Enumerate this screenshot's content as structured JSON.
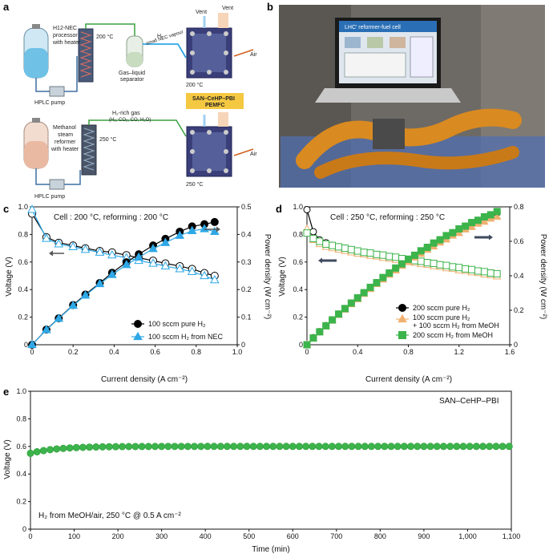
{
  "panels": {
    "a": "a",
    "b": "b",
    "c": "c",
    "d": "d",
    "e": "e"
  },
  "schematic": {
    "top": {
      "processor": "H12-NEC\nprocessor\nwith heater",
      "temp_processor": "200 °C",
      "pump": "HPLC pump",
      "separator": "Gas–liquid\nseparator",
      "line_label_1": "H₂",
      "line_label_2": "small NEC vapour",
      "temp_cell": "200 °C",
      "vent1": "Vent",
      "vent2": "Vent",
      "air": "Air",
      "cell_name_1": "SAN–CeHP–PBI",
      "cell_name_2": "PEMFC"
    },
    "bottom": {
      "reformer": "Methanol\nsteam\nreformer\nwith heater",
      "temp_reformer": "250 °C",
      "pump": "HPLC pump",
      "gas_label_1": "H₂-rich gas",
      "gas_label_2": "(H₂, CO₂, CO, H₂O)",
      "temp_cell": "250 °C",
      "air": "Air"
    }
  },
  "photo": {
    "screen_title": "LHC' reformer-fuel cell"
  },
  "chart_data": [
    {
      "id": "c",
      "type": "line",
      "annotation": "Cell : 200 °C, reforming : 200 °C",
      "xlabel": "Current density (A cm⁻²)",
      "ylabel": "Voltage (V)",
      "ylabel2": "Power density (W cm⁻²)",
      "xlim": [
        0,
        1.0
      ],
      "ylim": [
        0,
        1.0
      ],
      "y2lim": [
        0,
        0.5
      ],
      "xticks": [
        "0",
        "0.2",
        "0.4",
        "0.6",
        "0.8",
        "1.0"
      ],
      "yticks": [
        "0",
        "0.2",
        "0.4",
        "0.6",
        "0.8",
        "1.0"
      ],
      "y2ticks": [
        "0",
        "0.1",
        "0.2",
        "0.3",
        "0.4",
        "0.5"
      ],
      "legend_position": "bottom-right",
      "series": [
        {
          "name": "100 sccm pure H₂",
          "axis": "voltage",
          "marker": "circle-open",
          "x": [
            0,
            0.07,
            0.13,
            0.2,
            0.26,
            0.33,
            0.39,
            0.46,
            0.52,
            0.59,
            0.65,
            0.72,
            0.78,
            0.84,
            0.89
          ],
          "values": [
            0.95,
            0.78,
            0.74,
            0.72,
            0.7,
            0.68,
            0.67,
            0.65,
            0.63,
            0.61,
            0.59,
            0.57,
            0.55,
            0.52,
            0.5
          ]
        },
        {
          "name": "100 sccm H₂ from NEC",
          "axis": "voltage",
          "marker": "triangle-open",
          "x": [
            0,
            0.07,
            0.13,
            0.2,
            0.26,
            0.33,
            0.39,
            0.46,
            0.52,
            0.59,
            0.65,
            0.72,
            0.78,
            0.84,
            0.89
          ],
          "values": [
            0.98,
            0.77,
            0.73,
            0.71,
            0.69,
            0.67,
            0.65,
            0.63,
            0.61,
            0.59,
            0.57,
            0.55,
            0.53,
            0.5,
            0.47
          ]
        },
        {
          "name": "100 sccm pure H₂",
          "axis": "power",
          "marker": "circle-filled",
          "x": [
            0,
            0.07,
            0.13,
            0.2,
            0.26,
            0.33,
            0.39,
            0.46,
            0.52,
            0.59,
            0.65,
            0.72,
            0.78,
            0.84,
            0.89
          ],
          "values": [
            0,
            0.055,
            0.096,
            0.144,
            0.182,
            0.224,
            0.261,
            0.299,
            0.328,
            0.36,
            0.384,
            0.41,
            0.429,
            0.437,
            0.445
          ]
        },
        {
          "name": "100 sccm H₂ from NEC",
          "axis": "power",
          "marker": "triangle-filled",
          "x": [
            0,
            0.07,
            0.13,
            0.2,
            0.26,
            0.33,
            0.39,
            0.46,
            0.52,
            0.59,
            0.65,
            0.72,
            0.78,
            0.84,
            0.89
          ],
          "values": [
            0,
            0.054,
            0.095,
            0.142,
            0.179,
            0.221,
            0.254,
            0.29,
            0.317,
            0.348,
            0.37,
            0.396,
            0.413,
            0.42,
            0.41
          ]
        }
      ]
    },
    {
      "id": "d",
      "type": "line",
      "annotation": "Cell : 250 °C, reforming : 250 °C",
      "xlabel": "Current density (A cm⁻²)",
      "ylabel": "Voltage (V)",
      "ylabel2": "Power density (W cm⁻²)",
      "xlim": [
        0,
        1.6
      ],
      "ylim": [
        0,
        1.0
      ],
      "y2lim": [
        0,
        0.8
      ],
      "xticks": [
        "0",
        "0.4",
        "0.8",
        "1.2",
        "1.6"
      ],
      "yticks": [
        "0",
        "0.2",
        "0.4",
        "0.6",
        "0.8",
        "1.0"
      ],
      "y2ticks": [
        "0",
        "0.2",
        "0.4",
        "0.6",
        "0.8"
      ],
      "legend_position": "bottom-right",
      "series": [
        {
          "name": "200 sccm pure H₂",
          "axis": "voltage",
          "marker": "circle-open",
          "x": [
            0,
            0.05,
            0.1,
            0.15,
            0.2,
            0.25,
            0.3,
            0.35,
            0.4,
            0.45,
            0.5,
            0.55,
            0.6,
            0.65,
            0.7,
            0.75,
            0.8,
            0.85,
            0.9,
            0.95,
            1.0,
            1.05,
            1.1,
            1.15,
            1.2,
            1.25,
            1.3,
            1.35,
            1.4,
            1.45,
            1.5
          ],
          "values": [
            0.98,
            0.82,
            0.76,
            0.74,
            0.72,
            0.71,
            0.7,
            0.69,
            0.68,
            0.67,
            0.66,
            0.655,
            0.645,
            0.64,
            0.63,
            0.625,
            0.615,
            0.61,
            0.6,
            0.595,
            0.585,
            0.58,
            0.57,
            0.565,
            0.555,
            0.55,
            0.54,
            0.535,
            0.525,
            0.52,
            0.51
          ]
        },
        {
          "name": "100 sccm pure H₂ + 100 sccm H₂ from MeOH",
          "axis": "voltage",
          "marker": "triangle-open",
          "x": [
            0,
            0.05,
            0.1,
            0.15,
            0.2,
            0.25,
            0.3,
            0.35,
            0.4,
            0.45,
            0.5,
            0.55,
            0.6,
            0.65,
            0.7,
            0.75,
            0.8,
            0.85,
            0.9,
            0.95,
            1.0,
            1.05,
            1.1,
            1.15,
            1.2,
            1.25,
            1.3,
            1.35,
            1.4,
            1.45,
            1.5
          ],
          "values": [
            0.84,
            0.76,
            0.73,
            0.71,
            0.7,
            0.69,
            0.68,
            0.67,
            0.66,
            0.655,
            0.645,
            0.64,
            0.63,
            0.625,
            0.615,
            0.61,
            0.6,
            0.595,
            0.585,
            0.58,
            0.57,
            0.565,
            0.555,
            0.55,
            0.54,
            0.535,
            0.525,
            0.52,
            0.51,
            0.505,
            0.495
          ]
        },
        {
          "name": "200 sccm H₂ from MeOH",
          "axis": "voltage",
          "marker": "square-open",
          "x": [
            0,
            0.05,
            0.1,
            0.15,
            0.2,
            0.25,
            0.3,
            0.35,
            0.4,
            0.45,
            0.5,
            0.55,
            0.6,
            0.65,
            0.7,
            0.75,
            0.8,
            0.85,
            0.9,
            0.95,
            1.0,
            1.05,
            1.1,
            1.15,
            1.2,
            1.25,
            1.3,
            1.35,
            1.4,
            1.45,
            1.5
          ],
          "values": [
            0.81,
            0.77,
            0.75,
            0.73,
            0.72,
            0.71,
            0.7,
            0.69,
            0.68,
            0.67,
            0.665,
            0.655,
            0.65,
            0.64,
            0.635,
            0.625,
            0.62,
            0.61,
            0.605,
            0.595,
            0.59,
            0.58,
            0.575,
            0.565,
            0.56,
            0.55,
            0.545,
            0.535,
            0.53,
            0.52,
            0.515
          ]
        },
        {
          "name": "200 sccm pure H₂",
          "axis": "power",
          "marker": "circle-filled",
          "x": [
            0,
            0.05,
            0.1,
            0.15,
            0.2,
            0.25,
            0.3,
            0.35,
            0.4,
            0.45,
            0.5,
            0.55,
            0.6,
            0.65,
            0.7,
            0.75,
            0.8,
            0.85,
            0.9,
            0.95,
            1.0,
            1.05,
            1.1,
            1.15,
            1.2,
            1.25,
            1.3,
            1.35,
            1.4,
            1.45,
            1.5
          ],
          "values": [
            0,
            0.041,
            0.076,
            0.111,
            0.144,
            0.178,
            0.21,
            0.242,
            0.272,
            0.302,
            0.33,
            0.36,
            0.387,
            0.416,
            0.441,
            0.469,
            0.492,
            0.519,
            0.54,
            0.565,
            0.585,
            0.609,
            0.627,
            0.65,
            0.666,
            0.688,
            0.702,
            0.722,
            0.735,
            0.754,
            0.765
          ]
        },
        {
          "name": "100 sccm pure H₂ + 100 sccm H₂ from MeOH",
          "axis": "power",
          "marker": "triangle-filled",
          "x": [
            0,
            0.05,
            0.1,
            0.15,
            0.2,
            0.25,
            0.3,
            0.35,
            0.4,
            0.45,
            0.5,
            0.55,
            0.6,
            0.65,
            0.7,
            0.75,
            0.8,
            0.85,
            0.9,
            0.95,
            1.0,
            1.05,
            1.1,
            1.15,
            1.2,
            1.25,
            1.3,
            1.35,
            1.4,
            1.45,
            1.5
          ],
          "values": [
            0,
            0.038,
            0.073,
            0.107,
            0.14,
            0.173,
            0.204,
            0.235,
            0.264,
            0.295,
            0.323,
            0.352,
            0.378,
            0.406,
            0.431,
            0.458,
            0.48,
            0.506,
            0.527,
            0.551,
            0.57,
            0.593,
            0.611,
            0.633,
            0.648,
            0.669,
            0.683,
            0.702,
            0.714,
            0.732,
            0.743
          ]
        },
        {
          "name": "200 sccm H₂ from MeOH",
          "axis": "power",
          "marker": "square-filled",
          "x": [
            0,
            0.05,
            0.1,
            0.15,
            0.2,
            0.25,
            0.3,
            0.35,
            0.4,
            0.45,
            0.5,
            0.55,
            0.6,
            0.65,
            0.7,
            0.75,
            0.8,
            0.85,
            0.9,
            0.95,
            1.0,
            1.05,
            1.1,
            1.15,
            1.2,
            1.25,
            1.3,
            1.35,
            1.4,
            1.45,
            1.5
          ],
          "values": [
            0,
            0.039,
            0.075,
            0.11,
            0.144,
            0.178,
            0.21,
            0.242,
            0.272,
            0.302,
            0.333,
            0.36,
            0.39,
            0.416,
            0.445,
            0.469,
            0.496,
            0.519,
            0.545,
            0.565,
            0.59,
            0.609,
            0.633,
            0.65,
            0.672,
            0.688,
            0.709,
            0.722,
            0.742,
            0.754,
            0.773
          ]
        }
      ]
    },
    {
      "id": "e",
      "type": "scatter",
      "annotation_top": "SAN–CeHP–PBI",
      "annotation_bottom": "H₂ from MeOH/air, 250 °C @ 0.5 A cm⁻²",
      "xlabel": "Time (min)",
      "ylabel": "Voltage (V)",
      "xlim": [
        0,
        1100
      ],
      "ylim": [
        0,
        1.0
      ],
      "xticks": [
        "0",
        "100",
        "200",
        "300",
        "400",
        "500",
        "600",
        "700",
        "800",
        "900",
        "1,000",
        "1,100"
      ],
      "yticks": [
        "0",
        "0.2",
        "0.4",
        "0.6",
        "0.8",
        "1.0"
      ],
      "series": [
        {
          "name": "",
          "color": "#3cb44b",
          "x_start": 0,
          "x_step": 15,
          "x_end": 1095,
          "v_start": 0.55,
          "v_end": 0.6
        }
      ]
    }
  ],
  "colors": {
    "black": "#000000",
    "blue": "#2ea8e6",
    "green": "#3cb44b",
    "orange": "#f0b070",
    "axis": "#111111"
  }
}
